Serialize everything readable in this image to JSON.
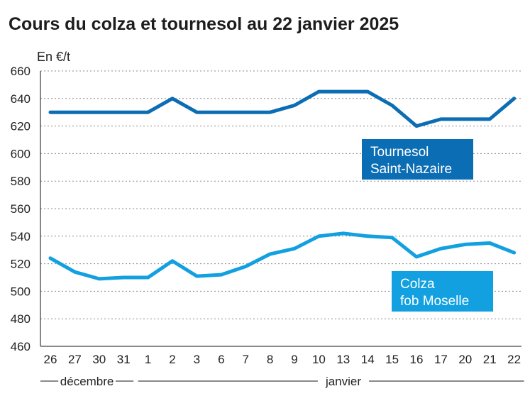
{
  "chart_data": {
    "type": "line",
    "title": "Cours du colza et tournesol au 22 janvier 2025",
    "ylabel": "En €/t",
    "ylim": [
      460,
      660
    ],
    "yticks": [
      460,
      480,
      500,
      520,
      540,
      560,
      580,
      600,
      620,
      640,
      660
    ],
    "categories": [
      "26",
      "27",
      "30",
      "31",
      "1",
      "2",
      "3",
      "6",
      "7",
      "8",
      "9",
      "10",
      "13",
      "14",
      "15",
      "16",
      "17",
      "20",
      "21",
      "22"
    ],
    "months": [
      {
        "label": "décembre",
        "from": 0,
        "to": 3
      },
      {
        "label": "janvier",
        "from": 4,
        "to": 19
      }
    ],
    "grid": true,
    "series": [
      {
        "name": "Tournesol Saint-Nazaire",
        "name_lines": [
          "Tournesol",
          "Saint-Nazaire"
        ],
        "color": "#0b6db4",
        "values": [
          630,
          630,
          630,
          630,
          630,
          640,
          630,
          630,
          630,
          630,
          635,
          645,
          645,
          645,
          635,
          620,
          625,
          625,
          625,
          640
        ]
      },
      {
        "name": "Colza fob Moselle",
        "name_lines": [
          "Colza",
          "fob Moselle"
        ],
        "color": "#12a0e0",
        "values": [
          524,
          514,
          509,
          510,
          510,
          522,
          511,
          512,
          518,
          527,
          531,
          540,
          542,
          540,
          539,
          525,
          531,
          534,
          535,
          528
        ]
      }
    ]
  }
}
